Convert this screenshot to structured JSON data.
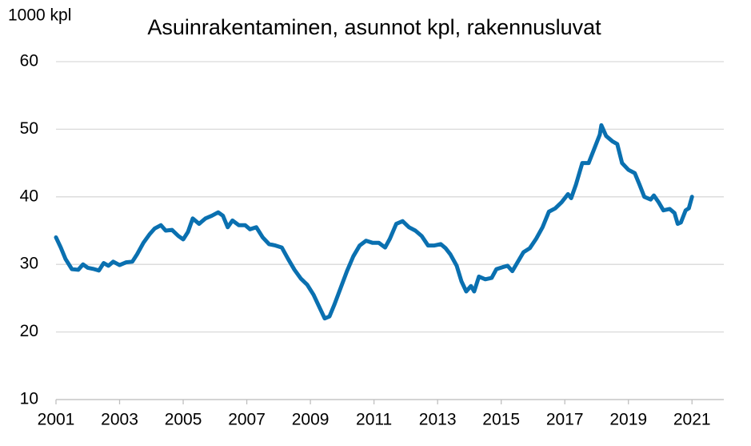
{
  "chart_data": {
    "type": "line",
    "title": "Asuinrakentaminen, asunnot kpl, rakennusluvat",
    "y_label": "1000 kpl",
    "color": "#0a70b0",
    "grid": true,
    "xlim": [
      2001,
      2022
    ],
    "xticks": [
      2001,
      2003,
      2005,
      2007,
      2009,
      2011,
      2013,
      2015,
      2017,
      2019,
      2021
    ],
    "ylim": [
      10,
      60
    ],
    "yticks": [
      10,
      20,
      30,
      40,
      50,
      60
    ],
    "x": [
      2001.0,
      2001.15,
      2001.3,
      2001.5,
      2001.7,
      2001.85,
      2002.0,
      2002.2,
      2002.35,
      2002.5,
      2002.65,
      2002.8,
      2003.0,
      2003.2,
      2003.4,
      2003.55,
      2003.75,
      2003.95,
      2004.1,
      2004.3,
      2004.45,
      2004.65,
      2004.85,
      2005.0,
      2005.15,
      2005.3,
      2005.5,
      2005.7,
      2005.9,
      2006.1,
      2006.25,
      2006.4,
      2006.55,
      2006.75,
      2006.95,
      2007.1,
      2007.3,
      2007.5,
      2007.7,
      2007.9,
      2008.1,
      2008.3,
      2008.5,
      2008.7,
      2008.9,
      2009.1,
      2009.3,
      2009.45,
      2009.6,
      2009.75,
      2009.95,
      2010.15,
      2010.35,
      2010.55,
      2010.75,
      2010.95,
      2011.15,
      2011.35,
      2011.5,
      2011.7,
      2011.9,
      2012.1,
      2012.3,
      2012.5,
      2012.7,
      2012.9,
      2013.1,
      2013.25,
      2013.4,
      2013.6,
      2013.75,
      2013.9,
      2014.05,
      2014.15,
      2014.3,
      2014.5,
      2014.7,
      2014.85,
      2015.05,
      2015.2,
      2015.35,
      2015.5,
      2015.7,
      2015.9,
      2016.1,
      2016.3,
      2016.5,
      2016.7,
      2016.9,
      2017.1,
      2017.2,
      2017.35,
      2017.55,
      2017.75,
      2017.9,
      2018.1,
      2018.15,
      2018.3,
      2018.5,
      2018.65,
      2018.8,
      2019.0,
      2019.2,
      2019.35,
      2019.5,
      2019.7,
      2019.8,
      2019.95,
      2020.1,
      2020.3,
      2020.45,
      2020.55,
      2020.65,
      2020.8,
      2020.9,
      2021.0
    ],
    "values": [
      34,
      32.5,
      30.8,
      29.3,
      29.2,
      30.0,
      29.5,
      29.3,
      29.1,
      30.2,
      29.8,
      30.4,
      29.9,
      30.3,
      30.4,
      31.5,
      33.2,
      34.5,
      35.3,
      35.8,
      35.0,
      35.1,
      34.2,
      33.7,
      34.8,
      36.8,
      36.0,
      36.8,
      37.2,
      37.7,
      37.2,
      35.5,
      36.5,
      35.8,
      35.8,
      35.2,
      35.5,
      34.0,
      33.0,
      32.8,
      32.5,
      30.8,
      29.2,
      27.9,
      27.0,
      25.5,
      23.5,
      22.0,
      22.3,
      24.0,
      26.5,
      29.0,
      31.2,
      32.8,
      33.5,
      33.2,
      33.2,
      32.5,
      33.8,
      36.0,
      36.4,
      35.5,
      35.0,
      34.2,
      32.8,
      32.8,
      33.0,
      32.4,
      31.5,
      29.8,
      27.5,
      26.0,
      26.8,
      26.0,
      28.2,
      27.8,
      28.0,
      29.3,
      29.6,
      29.8,
      29.0,
      30.2,
      31.8,
      32.4,
      33.8,
      35.5,
      37.8,
      38.3,
      39.2,
      40.4,
      39.8,
      41.8,
      45.0,
      45.0,
      46.8,
      49.2,
      50.6,
      49.0,
      48.2,
      47.8,
      45.0,
      44.0,
      43.5,
      41.8,
      40.0,
      39.6,
      40.2,
      39.2,
      38.0,
      38.2,
      37.6,
      36.0,
      36.2,
      38.0,
      38.3,
      40.0
    ]
  }
}
